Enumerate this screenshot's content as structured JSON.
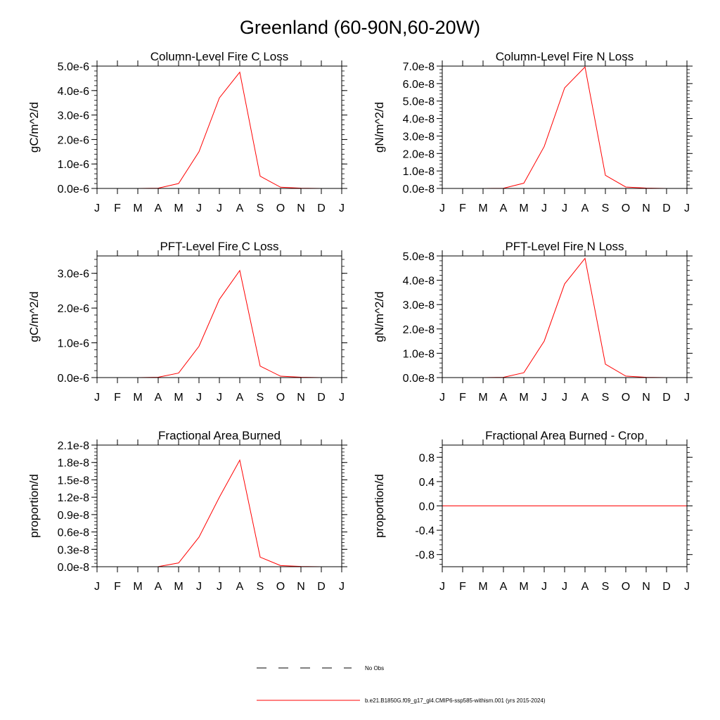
{
  "figure": {
    "title": "Greenland (60-90N,60-20W)",
    "legend": {
      "items": [
        {
          "label": "No Obs",
          "color": "#000000",
          "style": "dashed"
        },
        {
          "label": "b.e21.B1850G.f09_g17_gl4.CMIP6-ssp585-withism.001 (yrs 2015-2024)",
          "color": "#ff0000",
          "style": "solid"
        }
      ]
    }
  },
  "chart_data": [
    {
      "type": "line",
      "title": "Column-Level Fire C Loss",
      "ylabel": "gC/m^2/d",
      "xlabel": "",
      "categories": [
        "J",
        "F",
        "M",
        "A",
        "M",
        "J",
        "J",
        "A",
        "S",
        "O",
        "N",
        "D",
        "J"
      ],
      "ylim": [
        0,
        5e-06
      ],
      "yticks": [
        0,
        1e-06,
        2e-06,
        3e-06,
        4e-06,
        5e-06
      ],
      "ytick_labels": [
        "0.0e-6",
        "1.0e-6",
        "2.0e-6",
        "3.0e-6",
        "4.0e-6",
        "5.0e-6"
      ],
      "grid": false,
      "series": [
        {
          "color": "#ff0000",
          "values": [
            0,
            0,
            0,
            1e-08,
            2e-07,
            1.5e-06,
            3.7e-06,
            4.75e-06,
            5e-07,
            5e-08,
            1e-08,
            0,
            0
          ]
        }
      ]
    },
    {
      "type": "line",
      "title": "Column-Level Fire N Loss",
      "ylabel": "gN/m^2/d",
      "xlabel": "",
      "categories": [
        "J",
        "F",
        "M",
        "A",
        "M",
        "J",
        "J",
        "A",
        "S",
        "O",
        "N",
        "D",
        "J"
      ],
      "ylim": [
        0,
        7e-08
      ],
      "yticks": [
        0,
        1e-08,
        2e-08,
        3e-08,
        4e-08,
        5e-08,
        6e-08,
        7e-08
      ],
      "ytick_labels": [
        "0.0e-8",
        "1.0e-8",
        "2.0e-8",
        "3.0e-8",
        "4.0e-8",
        "5.0e-8",
        "6.0e-8",
        "7.0e-8"
      ],
      "grid": false,
      "series": [
        {
          "color": "#ff0000",
          "values": [
            0,
            0,
            0,
            1e-10,
            3e-09,
            2.4e-08,
            5.75e-08,
            6.95e-08,
            7.5e-09,
            8e-10,
            2e-10,
            0,
            0
          ]
        }
      ]
    },
    {
      "type": "line",
      "title": "PFT-Level Fire C Loss",
      "ylabel": "gC/m^2/d",
      "xlabel": "",
      "categories": [
        "J",
        "F",
        "M",
        "A",
        "M",
        "J",
        "J",
        "A",
        "S",
        "O",
        "N",
        "D",
        "J"
      ],
      "ylim": [
        0,
        3.5e-06
      ],
      "yticks": [
        0,
        1e-06,
        2e-06,
        3e-06
      ],
      "ytick_labels": [
        "0.0e-6",
        "1.0e-6",
        "2.0e-6",
        "3.0e-6"
      ],
      "grid": false,
      "series": [
        {
          "color": "#ff0000",
          "values": [
            0,
            0,
            0,
            1e-08,
            1.3e-07,
            9e-07,
            2.25e-06,
            3.08e-06,
            3.3e-07,
            4e-08,
            1e-08,
            0,
            0
          ]
        }
      ]
    },
    {
      "type": "line",
      "title": "PFT-Level Fire N Loss",
      "ylabel": "gN/m^2/d",
      "xlabel": "",
      "categories": [
        "J",
        "F",
        "M",
        "A",
        "M",
        "J",
        "J",
        "A",
        "S",
        "O",
        "N",
        "D",
        "J"
      ],
      "ylim": [
        0,
        5e-08
      ],
      "yticks": [
        0,
        1e-08,
        2e-08,
        3e-08,
        4e-08,
        5e-08
      ],
      "ytick_labels": [
        "0.0e-8",
        "1.0e-8",
        "2.0e-8",
        "3.0e-8",
        "4.0e-8",
        "5.0e-8"
      ],
      "grid": false,
      "series": [
        {
          "color": "#ff0000",
          "values": [
            0,
            0,
            0,
            1e-10,
            2e-09,
            1.5e-08,
            3.85e-08,
            4.9e-08,
            5.5e-09,
            6e-10,
            1e-10,
            0,
            0
          ]
        }
      ]
    },
    {
      "type": "line",
      "title": "Fractional Area Burned",
      "ylabel": "proportion/d",
      "xlabel": "",
      "categories": [
        "J",
        "F",
        "M",
        "A",
        "M",
        "J",
        "J",
        "A",
        "S",
        "O",
        "N",
        "D",
        "J"
      ],
      "ylim": [
        0,
        2.1e-08
      ],
      "yticks": [
        0,
        3e-09,
        6e-09,
        9e-09,
        1.2e-08,
        1.5e-08,
        1.8e-08,
        2.1e-08
      ],
      "ytick_labels": [
        "0.0e-8",
        "0.3e-8",
        "0.6e-8",
        "0.9e-8",
        "1.2e-8",
        "1.5e-8",
        "1.8e-8",
        "2.1e-8"
      ],
      "grid": false,
      "series": [
        {
          "color": "#ff0000",
          "values": [
            0,
            0,
            0,
            1e-11,
            6.5e-10,
            5.1e-09,
            1.2e-08,
            1.84e-08,
            1.65e-09,
            2e-10,
            5e-11,
            0,
            0
          ]
        }
      ]
    },
    {
      "type": "line",
      "title": "Fractional Area Burned - Crop",
      "ylabel": "proportion/d",
      "xlabel": "",
      "categories": [
        "J",
        "F",
        "M",
        "A",
        "M",
        "J",
        "J",
        "A",
        "S",
        "O",
        "N",
        "D",
        "J"
      ],
      "ylim": [
        -1.0,
        1.0
      ],
      "yticks": [
        -0.8,
        -0.4,
        0.0,
        0.4,
        0.8
      ],
      "ytick_labels": [
        "-0.8",
        "-0.4",
        "0.0",
        "0.4",
        "0.8"
      ],
      "grid": false,
      "series": [
        {
          "color": "#ff0000",
          "values": [
            0,
            0,
            0,
            0,
            0,
            0,
            0,
            0,
            0,
            0,
            0,
            0,
            0
          ]
        }
      ]
    }
  ]
}
